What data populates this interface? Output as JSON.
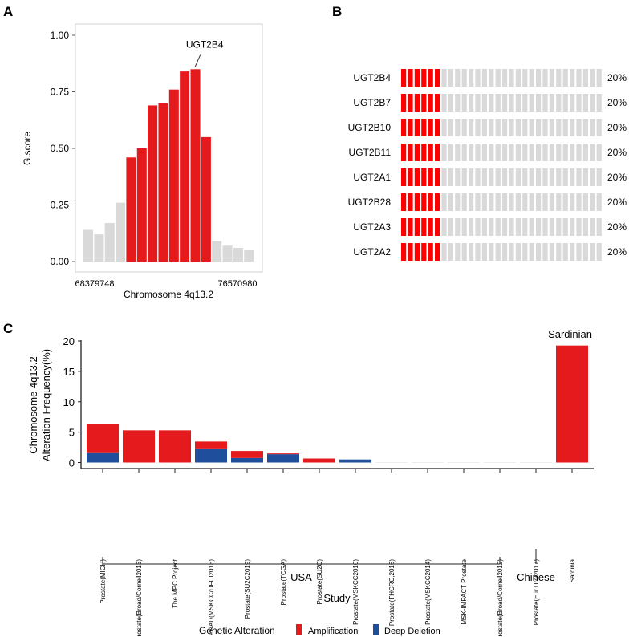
{
  "chart_data": [
    {
      "panel": "A",
      "type": "bar",
      "ylabel": "G.score",
      "xlabel": "Chromosome 4q13.2",
      "x_tick_labels": [
        "68379748",
        "76570980"
      ],
      "yticks": [
        "0.00",
        "0.25",
        "0.50",
        "0.75",
        "1.00"
      ],
      "ylim": [
        0,
        1
      ],
      "values": [
        0.14,
        0.12,
        0.17,
        0.26,
        0.46,
        0.5,
        0.69,
        0.7,
        0.76,
        0.84,
        0.85,
        0.55,
        0.09,
        0.07,
        0.06,
        0.05
      ],
      "highlighted": [
        false,
        false,
        false,
        false,
        true,
        true,
        true,
        true,
        true,
        true,
        true,
        true,
        false,
        false,
        false,
        false
      ],
      "annotation": "UGT2B4",
      "annotation_index": 10,
      "colors": {
        "highlight": "#e41a1c",
        "other": "#d9d9d9"
      }
    },
    {
      "panel": "B",
      "type": "heatmap",
      "genes": [
        "UGT2B4",
        "UGT2B7",
        "UGT2B10",
        "UGT2B11",
        "UGT2A1",
        "UGT2B28",
        "UGT2A3",
        "UGT2A2"
      ],
      "percent_labels": [
        "20%",
        "20%",
        "20%",
        "20%",
        "20%",
        "20%",
        "20%",
        "20%"
      ],
      "samples_total": 30,
      "samples_altered": 6,
      "colors": {
        "altered": "#ff0000",
        "unaltered": "#d9d9d9"
      }
    },
    {
      "panel": "C",
      "type": "bar",
      "stacked": true,
      "ylabel": [
        "Chromosome 4q13.2",
        "Alteration Frequency(%)"
      ],
      "xlabel": "Study",
      "ylim": [
        0,
        20
      ],
      "yticks": [
        "0",
        "5",
        "10",
        "15",
        "20"
      ],
      "categories": [
        "Prostate(MICH)",
        "Prostate(Broad/Cornell2013)",
        "The MPC Project",
        "PRAD(MSKCC/DFCI2018)",
        "Prostate(SU2C2019)",
        "Prostate(TCGA)",
        "Prostate(SU2C)",
        "Prostate(MSKCC2010)",
        "Prostate(FHCRC,2016)",
        "Prostate(MSKCC2014)",
        "MSK-IMPACT Prostate",
        "Prostate(Broad/Cornell2012)",
        "Prostate(Eur Urol2017)",
        "Sardinia"
      ],
      "series": [
        {
          "name": "Deep Deletion",
          "color": "#1f4e9c",
          "values": [
            1.55,
            0,
            0,
            2.2,
            0.75,
            1.37,
            0,
            0.5,
            0,
            0,
            0,
            0,
            0,
            0
          ]
        },
        {
          "name": "Amplification",
          "color": "#e41a1c",
          "values": [
            4.85,
            5.3,
            5.3,
            1.25,
            1.15,
            0.13,
            0.66,
            0,
            0,
            0,
            0,
            0,
            0,
            19.25
          ]
        }
      ],
      "groups": [
        {
          "label": "USA",
          "from": 0,
          "to": 11
        },
        {
          "label": "Chinese",
          "from": 12,
          "to": 12
        }
      ],
      "bar_annotation": {
        "index": 13,
        "text": "Sardinian"
      },
      "legend": {
        "title": "Genetic Alteration",
        "placement": "bottom",
        "items": [
          "Amplification",
          "Deep Deletion"
        ]
      }
    }
  ],
  "panel_labels": [
    "A",
    "B",
    "C"
  ]
}
